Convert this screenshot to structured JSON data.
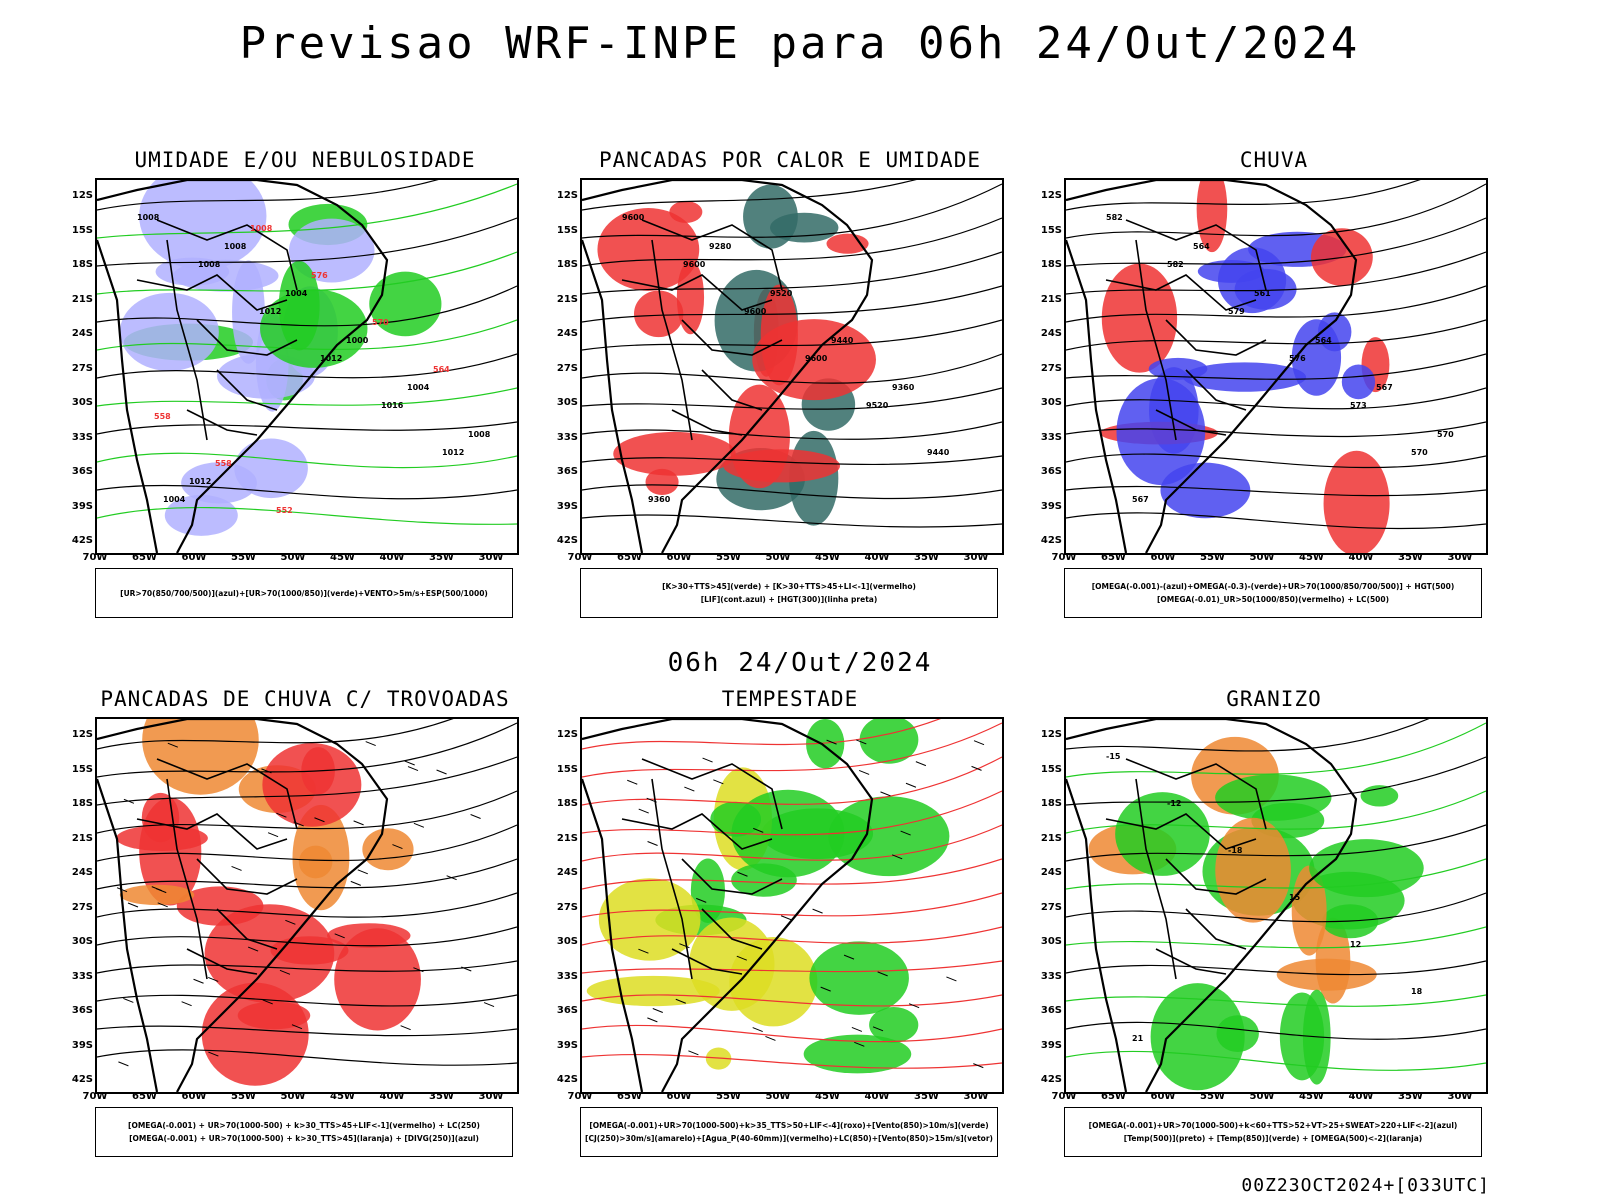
{
  "title": "Previsao WRF-INPE  para 06h 24/Out/2024",
  "mid_title": "06h 24/Out/2024",
  "footer": "00Z23OCT2024+[033UTC]",
  "lat_labels": [
    "12S",
    "15S",
    "18S",
    "21S",
    "24S",
    "27S",
    "30S",
    "33S",
    "36S",
    "39S",
    "42S"
  ],
  "lon_labels": [
    "70W",
    "65W",
    "60W",
    "55W",
    "50W",
    "45W",
    "40W",
    "35W",
    "30W"
  ],
  "colors": {
    "blue": "#4444ee",
    "light_blue": "#b0b0ff",
    "green": "#22cc22",
    "red": "#ee3333",
    "orange": "#ee8833",
    "yellow": "#dddd22",
    "dark_teal": "#336b66",
    "purple": "#9922cc"
  },
  "panels": [
    {
      "id": "umidade",
      "title": "UMIDADE E/OU NEBULOSIDADE",
      "legend": [
        "[UR>70(850/700/500)](azul)+[UR>70(1000/850)](verde)+VENTO>5m/s+ESP(500/1000)"
      ],
      "contour_labels": [
        "1008",
        "1008",
        "1012",
        "1012",
        "1016",
        "1012",
        "1004",
        "1008",
        "1004",
        "1000",
        "1004",
        "1008",
        "1012",
        "1008",
        "576",
        "570",
        "564",
        "558",
        "558",
        "552"
      ]
    },
    {
      "id": "pancadas_calor",
      "title": "PANCADAS POR CALOR E UMIDADE",
      "legend": [
        "[K>30+TTS>45](verde) + [K>30+TTS>45+LI<-1](vermelho)",
        "[LIF](cont.azul) + [HGT(300)](linha preta)"
      ],
      "contour_labels": [
        "9600",
        "9600",
        "9600",
        "9600",
        "9520",
        "9440",
        "9360",
        "9280",
        "9520",
        "9440",
        "9360"
      ]
    },
    {
      "id": "chuva",
      "title": "CHUVA",
      "legend": [
        "[OMEGA(-0.001)-(azul)+OMEGA(-0.3)-(verde)+UR>70(1000/850/700/500)] + HGT(500)",
        "[OMEGA(-0.01)_UR>50(1000/850)(vermelho) + LC(500)"
      ],
      "contour_labels": [
        "582",
        "582",
        "579",
        "576",
        "573",
        "570",
        "567",
        "564",
        "561",
        "564",
        "567",
        "570"
      ]
    },
    {
      "id": "pancadas_trovoadas",
      "title": "PANCADAS DE CHUVA C/ TROVOADAS",
      "legend": [
        "[OMEGA(-0.001) + UR>70(1000-500) + k>30_TTS>45+LIF<-1](vermelho) + LC(250)",
        "[OMEGA(-0.001) + UR>70(1000-500) + k>30_TTS>45](laranja) + [DIVG(250)](azul)"
      ],
      "contour_labels": []
    },
    {
      "id": "tempestade",
      "title": "TEMPESTADE",
      "legend": [
        "[OMEGA(-0.001)+UR>70(1000-500)+k>35_TTS>50+LIF<-4](roxo)+[Vento(850)>10m/s](verde)",
        "[CJ(250)>30m/s](amarelo)+[Agua_P(40-60mm)](vermelho)+LC(850)+[Vento(850)>15m/s](vetor)"
      ],
      "contour_labels": []
    },
    {
      "id": "granizo",
      "title": "GRANIZO",
      "legend": [
        "[OMEGA(-0.001)+UR>70(1000-500)+k<60+TTS>52+VT>25+SWEAT>220+LIF<-2](azul)",
        "[Temp(500)](preto) + [Temp(850)](verde) + [OMEGA(500)<-2](laranja)"
      ],
      "contour_labels": [
        "-15",
        "-12",
        "-18",
        "15",
        "12",
        "18",
        "21"
      ]
    }
  ]
}
